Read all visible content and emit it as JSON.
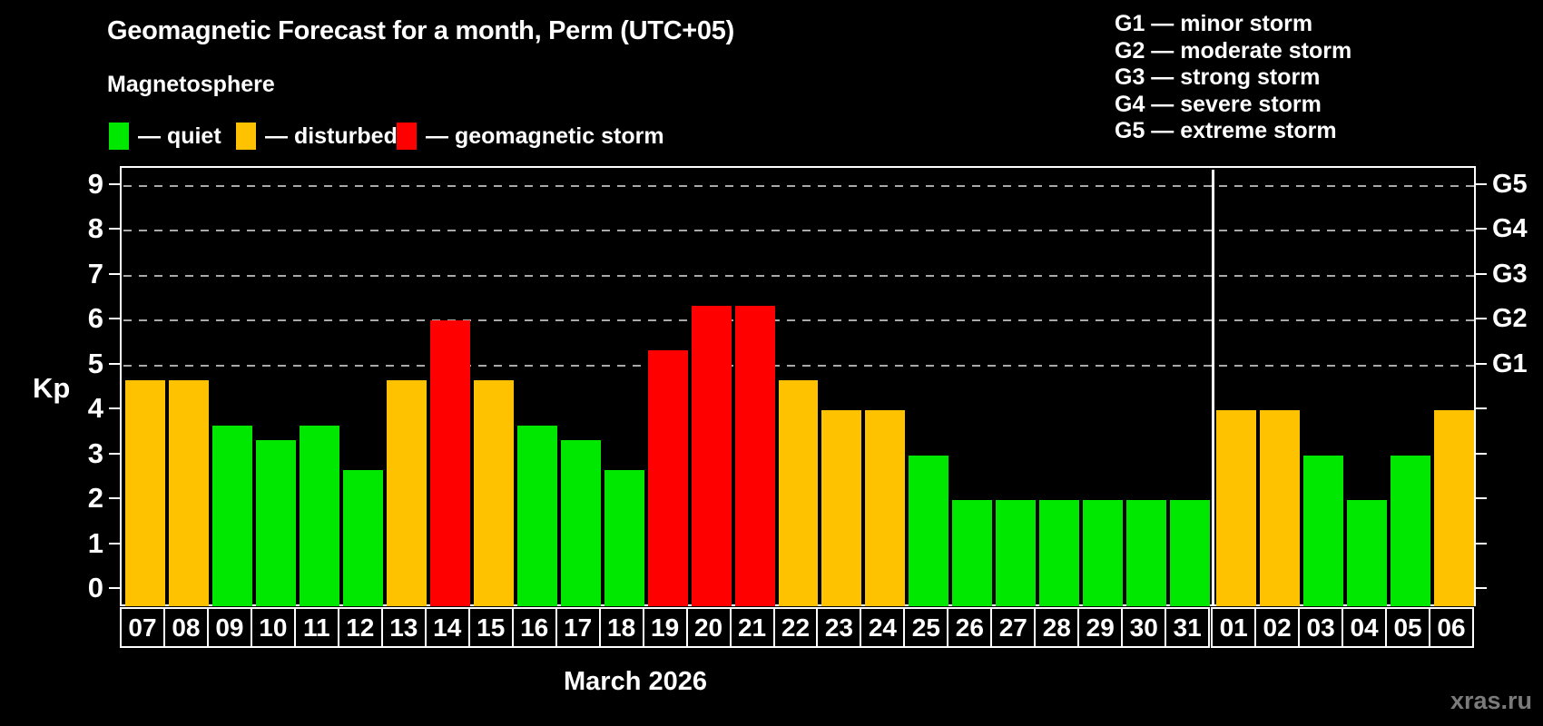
{
  "title": "Geomagnetic Forecast for a month, Perm (UTC+05)",
  "subtitle": "Magnetosphere",
  "legend": {
    "colors": {
      "quiet": "#00e800",
      "disturbed": "#ffc200",
      "storm": "#ff0000"
    },
    "items": [
      {
        "key": "quiet",
        "label": "— quiet"
      },
      {
        "key": "disturbed",
        "label": "— disturbed"
      },
      {
        "key": "storm",
        "label": "— geomagnetic storm"
      }
    ]
  },
  "g_legend": [
    "G1 — minor storm",
    "G2 — moderate storm",
    "G3 — strong storm",
    "G4 — severe storm",
    "G5 — extreme storm"
  ],
  "axis": {
    "kp_label": "Kp",
    "left_ticks": [
      0,
      1,
      2,
      3,
      4,
      5,
      6,
      7,
      8,
      9
    ],
    "right_labels": [
      {
        "kp": 5,
        "label": "G1"
      },
      {
        "kp": 6,
        "label": "G2"
      },
      {
        "kp": 7,
        "label": "G3"
      },
      {
        "kp": 8,
        "label": "G4"
      },
      {
        "kp": 9,
        "label": "G5"
      }
    ]
  },
  "x_caption": "March 2026",
  "watermark": "xras.ru",
  "chart_data": {
    "type": "bar",
    "title": "Geomagnetic Forecast for a month, Perm (UTC+05)",
    "xlabel": "March 2026",
    "ylabel": "Kp",
    "ylim": [
      0,
      9
    ],
    "grid": "dashed horizontal at Kp 5-9 (G1-G5)",
    "legend_position": "top-left colors, top-right G-scale",
    "separator_after_index": 24,
    "categories": [
      "07",
      "08",
      "09",
      "10",
      "11",
      "12",
      "13",
      "14",
      "15",
      "16",
      "17",
      "18",
      "19",
      "20",
      "21",
      "22",
      "23",
      "24",
      "25",
      "26",
      "27",
      "28",
      "29",
      "30",
      "31",
      "01",
      "02",
      "03",
      "04",
      "05",
      "06"
    ],
    "values": [
      4.67,
      4.67,
      3.67,
      3.33,
      3.67,
      2.67,
      4.67,
      6.0,
      4.67,
      3.67,
      3.33,
      2.67,
      5.33,
      6.33,
      6.33,
      4.67,
      4.0,
      4.0,
      3.0,
      2.0,
      2.0,
      2.0,
      2.0,
      2.0,
      2.0,
      4.0,
      4.0,
      3.0,
      2.0,
      3.0,
      4.0
    ],
    "levels": [
      "disturbed",
      "disturbed",
      "quiet",
      "quiet",
      "quiet",
      "quiet",
      "disturbed",
      "storm",
      "disturbed",
      "quiet",
      "quiet",
      "quiet",
      "storm",
      "storm",
      "storm",
      "disturbed",
      "disturbed",
      "disturbed",
      "quiet",
      "quiet",
      "quiet",
      "quiet",
      "quiet",
      "quiet",
      "quiet",
      "disturbed",
      "disturbed",
      "quiet",
      "quiet",
      "quiet",
      "disturbed"
    ]
  }
}
